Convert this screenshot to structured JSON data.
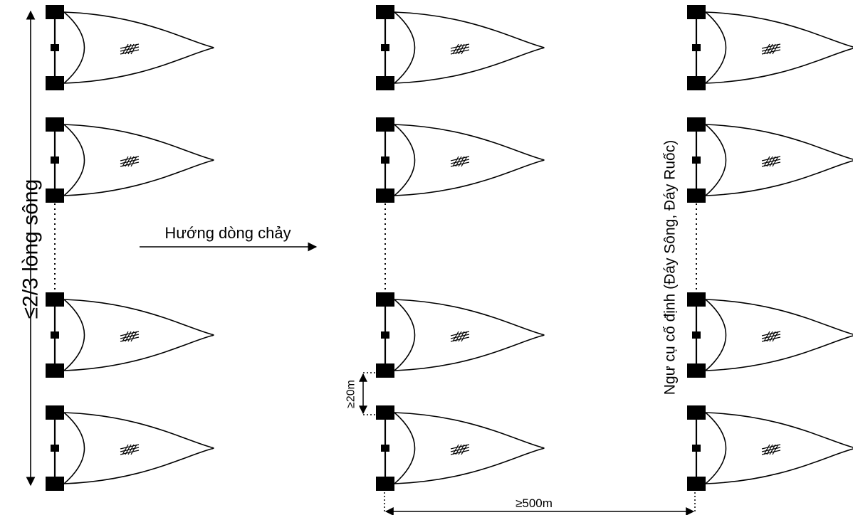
{
  "labels": {
    "river_width": "≤2/3 lòng sông",
    "flow_direction": "Hướng dòng chảy",
    "gear_type": "Ngư cụ cố định (Đáy Sông, Đáy Ruốc)",
    "net_spacing": "≥20m",
    "row_spacing": "≥500m"
  },
  "colors": {
    "ink": "#000000",
    "background": "#ffffff"
  }
}
